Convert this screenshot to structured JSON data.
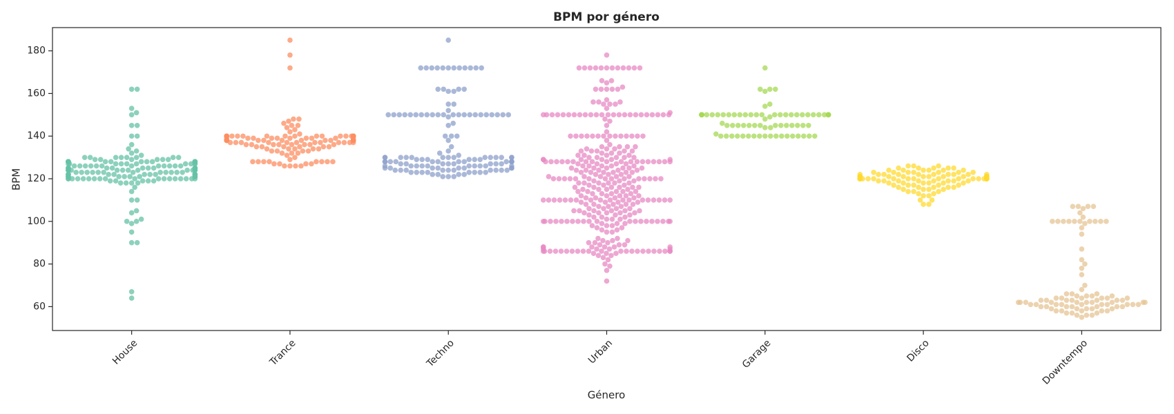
{
  "chart_data": {
    "type": "swarm",
    "title": "BPM por género",
    "x_label": "Género",
    "y_label": "BPM",
    "categories": [
      "House",
      "Trance",
      "Techno",
      "Urban",
      "Garage",
      "Disco",
      "Downtempo"
    ],
    "colors": [
      "#66c2a5",
      "#fc8d62",
      "#8da0cb",
      "#e78ac3",
      "#a6d854",
      "#ffd92f",
      "#e5c494"
    ],
    "ylim": [
      48.8,
      190.9
    ],
    "yticks": [
      60,
      80,
      100,
      120,
      140,
      160,
      180
    ],
    "values": [
      [
        162,
        162,
        153,
        151,
        150,
        145,
        145,
        140,
        140,
        136,
        134,
        133,
        132,
        131,
        130,
        130,
        130,
        130,
        130,
        130,
        130,
        130,
        129,
        129,
        129,
        129,
        129,
        129,
        128,
        128,
        128,
        128,
        128,
        128,
        128,
        128,
        128,
        128,
        128,
        128,
        128,
        128,
        127,
        127,
        127,
        127,
        127,
        127,
        127,
        127,
        127,
        127,
        126,
        126,
        126,
        126,
        126,
        126,
        126,
        126,
        126,
        126,
        126,
        126,
        125,
        125,
        125,
        125,
        125,
        125,
        125,
        125,
        125,
        125,
        125,
        125,
        124,
        124,
        124,
        124,
        124,
        124,
        124,
        124,
        124,
        124,
        124,
        124,
        124,
        124,
        123,
        123,
        123,
        123,
        123,
        123,
        123,
        123,
        123,
        123,
        123,
        123,
        122,
        122,
        122,
        122,
        122,
        122,
        122,
        122,
        122,
        122,
        122,
        122,
        121,
        121,
        121,
        121,
        121,
        121,
        121,
        121,
        121,
        121,
        120,
        120,
        120,
        120,
        120,
        120,
        120,
        120,
        120,
        120,
        120,
        120,
        120,
        120,
        120,
        120,
        120,
        120,
        119,
        119,
        119,
        119,
        119,
        118,
        118,
        118,
        118,
        116,
        114,
        110,
        110,
        105,
        104,
        101,
        100,
        100,
        99,
        95,
        90,
        90,
        67,
        64
      ],
      [
        185,
        178,
        172,
        148,
        148,
        147,
        146,
        145,
        145,
        144,
        143,
        142,
        141,
        140,
        140,
        140,
        140,
        140,
        140,
        140,
        140,
        140,
        140,
        140,
        140,
        140,
        140,
        140,
        140,
        140,
        140,
        140,
        140,
        139,
        139,
        139,
        139,
        139,
        139,
        139,
        139,
        139,
        139,
        138,
        138,
        138,
        138,
        138,
        138,
        138,
        138,
        138,
        138,
        138,
        138,
        138,
        138,
        137,
        137,
        137,
        137,
        137,
        137,
        137,
        137,
        137,
        137,
        137,
        137,
        136,
        136,
        136,
        136,
        136,
        136,
        136,
        136,
        135,
        135,
        135,
        135,
        135,
        135,
        134,
        134,
        134,
        134,
        134,
        133,
        133,
        133,
        133,
        132,
        132,
        132,
        131,
        130,
        129,
        128,
        128,
        128,
        128,
        128,
        128,
        128,
        128,
        127,
        127,
        127,
        127,
        126,
        126,
        126,
        126
      ],
      [
        185,
        172,
        172,
        172,
        172,
        172,
        172,
        172,
        172,
        172,
        172,
        172,
        172,
        162,
        162,
        162,
        162,
        161,
        161,
        155,
        155,
        152,
        150,
        150,
        150,
        150,
        150,
        150,
        150,
        150,
        150,
        150,
        150,
        150,
        150,
        150,
        150,
        150,
        150,
        150,
        150,
        150,
        150,
        150,
        149,
        146,
        145,
        140,
        140,
        140,
        138,
        135,
        133,
        132,
        131,
        130,
        130,
        130,
        130,
        130,
        130,
        130,
        130,
        130,
        130,
        130,
        130,
        130,
        130,
        129,
        129,
        129,
        129,
        129,
        129,
        128,
        128,
        128,
        128,
        128,
        128,
        128,
        128,
        128,
        128,
        128,
        128,
        127,
        127,
        127,
        127,
        127,
        127,
        127,
        127,
        126,
        126,
        126,
        126,
        126,
        126,
        126,
        126,
        126,
        126,
        125,
        125,
        125,
        125,
        125,
        125,
        125,
        125,
        124,
        124,
        124,
        124,
        124,
        124,
        124,
        124,
        124,
        124,
        123,
        123,
        123,
        123,
        123,
        123,
        123,
        123,
        122,
        122,
        122,
        122,
        121,
        121,
        121
      ],
      [
        178,
        172,
        172,
        172,
        172,
        172,
        172,
        172,
        172,
        172,
        172,
        172,
        172,
        166,
        166,
        165,
        163,
        162,
        162,
        162,
        162,
        162,
        157,
        156,
        156,
        156,
        155,
        155,
        155,
        153,
        151,
        150,
        150,
        150,
        150,
        150,
        150,
        150,
        150,
        150,
        150,
        150,
        150,
        150,
        150,
        150,
        150,
        150,
        150,
        150,
        150,
        150,
        150,
        150,
        150,
        148,
        147,
        145,
        142,
        140,
        140,
        140,
        140,
        140,
        140,
        140,
        140,
        140,
        140,
        140,
        140,
        140,
        140,
        138,
        136,
        135,
        135,
        135,
        135,
        134,
        134,
        134,
        133,
        133,
        133,
        133,
        133,
        132,
        132,
        132,
        131,
        131,
        131,
        131,
        130,
        130,
        130,
        130,
        130,
        129,
        129,
        129,
        129,
        129,
        129,
        128,
        128,
        128,
        128,
        128,
        128,
        128,
        128,
        128,
        128,
        128,
        128,
        128,
        128,
        128,
        128,
        128,
        128,
        127,
        127,
        127,
        127,
        126,
        126,
        126,
        126,
        126,
        125,
        125,
        125,
        125,
        125,
        125,
        124,
        124,
        124,
        124,
        124,
        123,
        123,
        123,
        123,
        123,
        123,
        122,
        122,
        122,
        121,
        121,
        121,
        121,
        121,
        120,
        120,
        120,
        120,
        120,
        120,
        120,
        120,
        120,
        120,
        120,
        120,
        120,
        120,
        119,
        119,
        119,
        118,
        118,
        118,
        118,
        118,
        118,
        117,
        117,
        117,
        116,
        116,
        116,
        116,
        116,
        116,
        115,
        115,
        115,
        115,
        114,
        114,
        114,
        114,
        114,
        113,
        113,
        113,
        113,
        112,
        112,
        112,
        112,
        112,
        111,
        111,
        111,
        111,
        110,
        110,
        110,
        110,
        110,
        110,
        110,
        110,
        110,
        110,
        110,
        110,
        110,
        110,
        110,
        110,
        110,
        110,
        109,
        109,
        109,
        109,
        108,
        108,
        108,
        108,
        108,
        107,
        107,
        107,
        106,
        106,
        106,
        106,
        105,
        105,
        105,
        105,
        105,
        105,
        104,
        104,
        104,
        104,
        104,
        103,
        103,
        103,
        102,
        102,
        102,
        101,
        101,
        101,
        100,
        100,
        100,
        100,
        100,
        100,
        100,
        100,
        100,
        100,
        100,
        100,
        100,
        100,
        100,
        100,
        100,
        100,
        100,
        100,
        99,
        99,
        99,
        98,
        98,
        98,
        97,
        97,
        96,
        96,
        95,
        95,
        92,
        92,
        91,
        91,
        91,
        90,
        90,
        90,
        89,
        89,
        89,
        88,
        88,
        88,
        88,
        88,
        88,
        87,
        87,
        87,
        87,
        86,
        86,
        86,
        86,
        86,
        86,
        86,
        86,
        86,
        86,
        86,
        86,
        86,
        86,
        86,
        86,
        86,
        86,
        86,
        86,
        86,
        86,
        85,
        85,
        85,
        84,
        84,
        83,
        82,
        80,
        79,
        77,
        72
      ],
      [
        172,
        162,
        162,
        162,
        161,
        155,
        154,
        150,
        150,
        150,
        150,
        150,
        150,
        150,
        150,
        150,
        150,
        150,
        150,
        150,
        150,
        150,
        150,
        150,
        150,
        150,
        150,
        150,
        150,
        150,
        150,
        150,
        150,
        150,
        150,
        150,
        150,
        149,
        148,
        146,
        145,
        145,
        145,
        145,
        145,
        145,
        145,
        145,
        145,
        145,
        145,
        145,
        145,
        145,
        144,
        144,
        141,
        140,
        140,
        140,
        140,
        140,
        140,
        140,
        140,
        140,
        140,
        140,
        140,
        140,
        140,
        140,
        140,
        140,
        140
      ],
      [
        126,
        126,
        126,
        125,
        125,
        125,
        125,
        125,
        124,
        124,
        124,
        124,
        124,
        124,
        123,
        123,
        123,
        123,
        123,
        123,
        123,
        122,
        122,
        122,
        122,
        122,
        122,
        122,
        122,
        122,
        122,
        121,
        121,
        121,
        121,
        121,
        121,
        121,
        121,
        121,
        121,
        121,
        121,
        121,
        121,
        120,
        120,
        120,
        120,
        120,
        120,
        120,
        120,
        120,
        120,
        120,
        120,
        120,
        120,
        120,
        120,
        120,
        120,
        120,
        120,
        120,
        120,
        119,
        119,
        119,
        119,
        119,
        119,
        119,
        119,
        118,
        118,
        118,
        118,
        118,
        118,
        117,
        117,
        117,
        117,
        117,
        116,
        116,
        116,
        116,
        116,
        115,
        115,
        115,
        115,
        114,
        114,
        114,
        113,
        113,
        112,
        112,
        110,
        110,
        108,
        108
      ],
      [
        107,
        107,
        107,
        107,
        106,
        104,
        102,
        100,
        100,
        100,
        100,
        100,
        100,
        100,
        100,
        100,
        100,
        99,
        97,
        94,
        87,
        82,
        80,
        78,
        75,
        70,
        68,
        66,
        66,
        66,
        65,
        65,
        65,
        65,
        64,
        64,
        64,
        64,
        64,
        64,
        63,
        63,
        63,
        63,
        63,
        63,
        63,
        62,
        62,
        62,
        62,
        62,
        62,
        62,
        62,
        62,
        62,
        61,
        61,
        61,
        61,
        61,
        61,
        61,
        61,
        61,
        61,
        60,
        60,
        60,
        60,
        60,
        60,
        60,
        59,
        59,
        59,
        59,
        59,
        58,
        58,
        58,
        58,
        58,
        57,
        57,
        57,
        56,
        56,
        56,
        55
      ]
    ]
  }
}
